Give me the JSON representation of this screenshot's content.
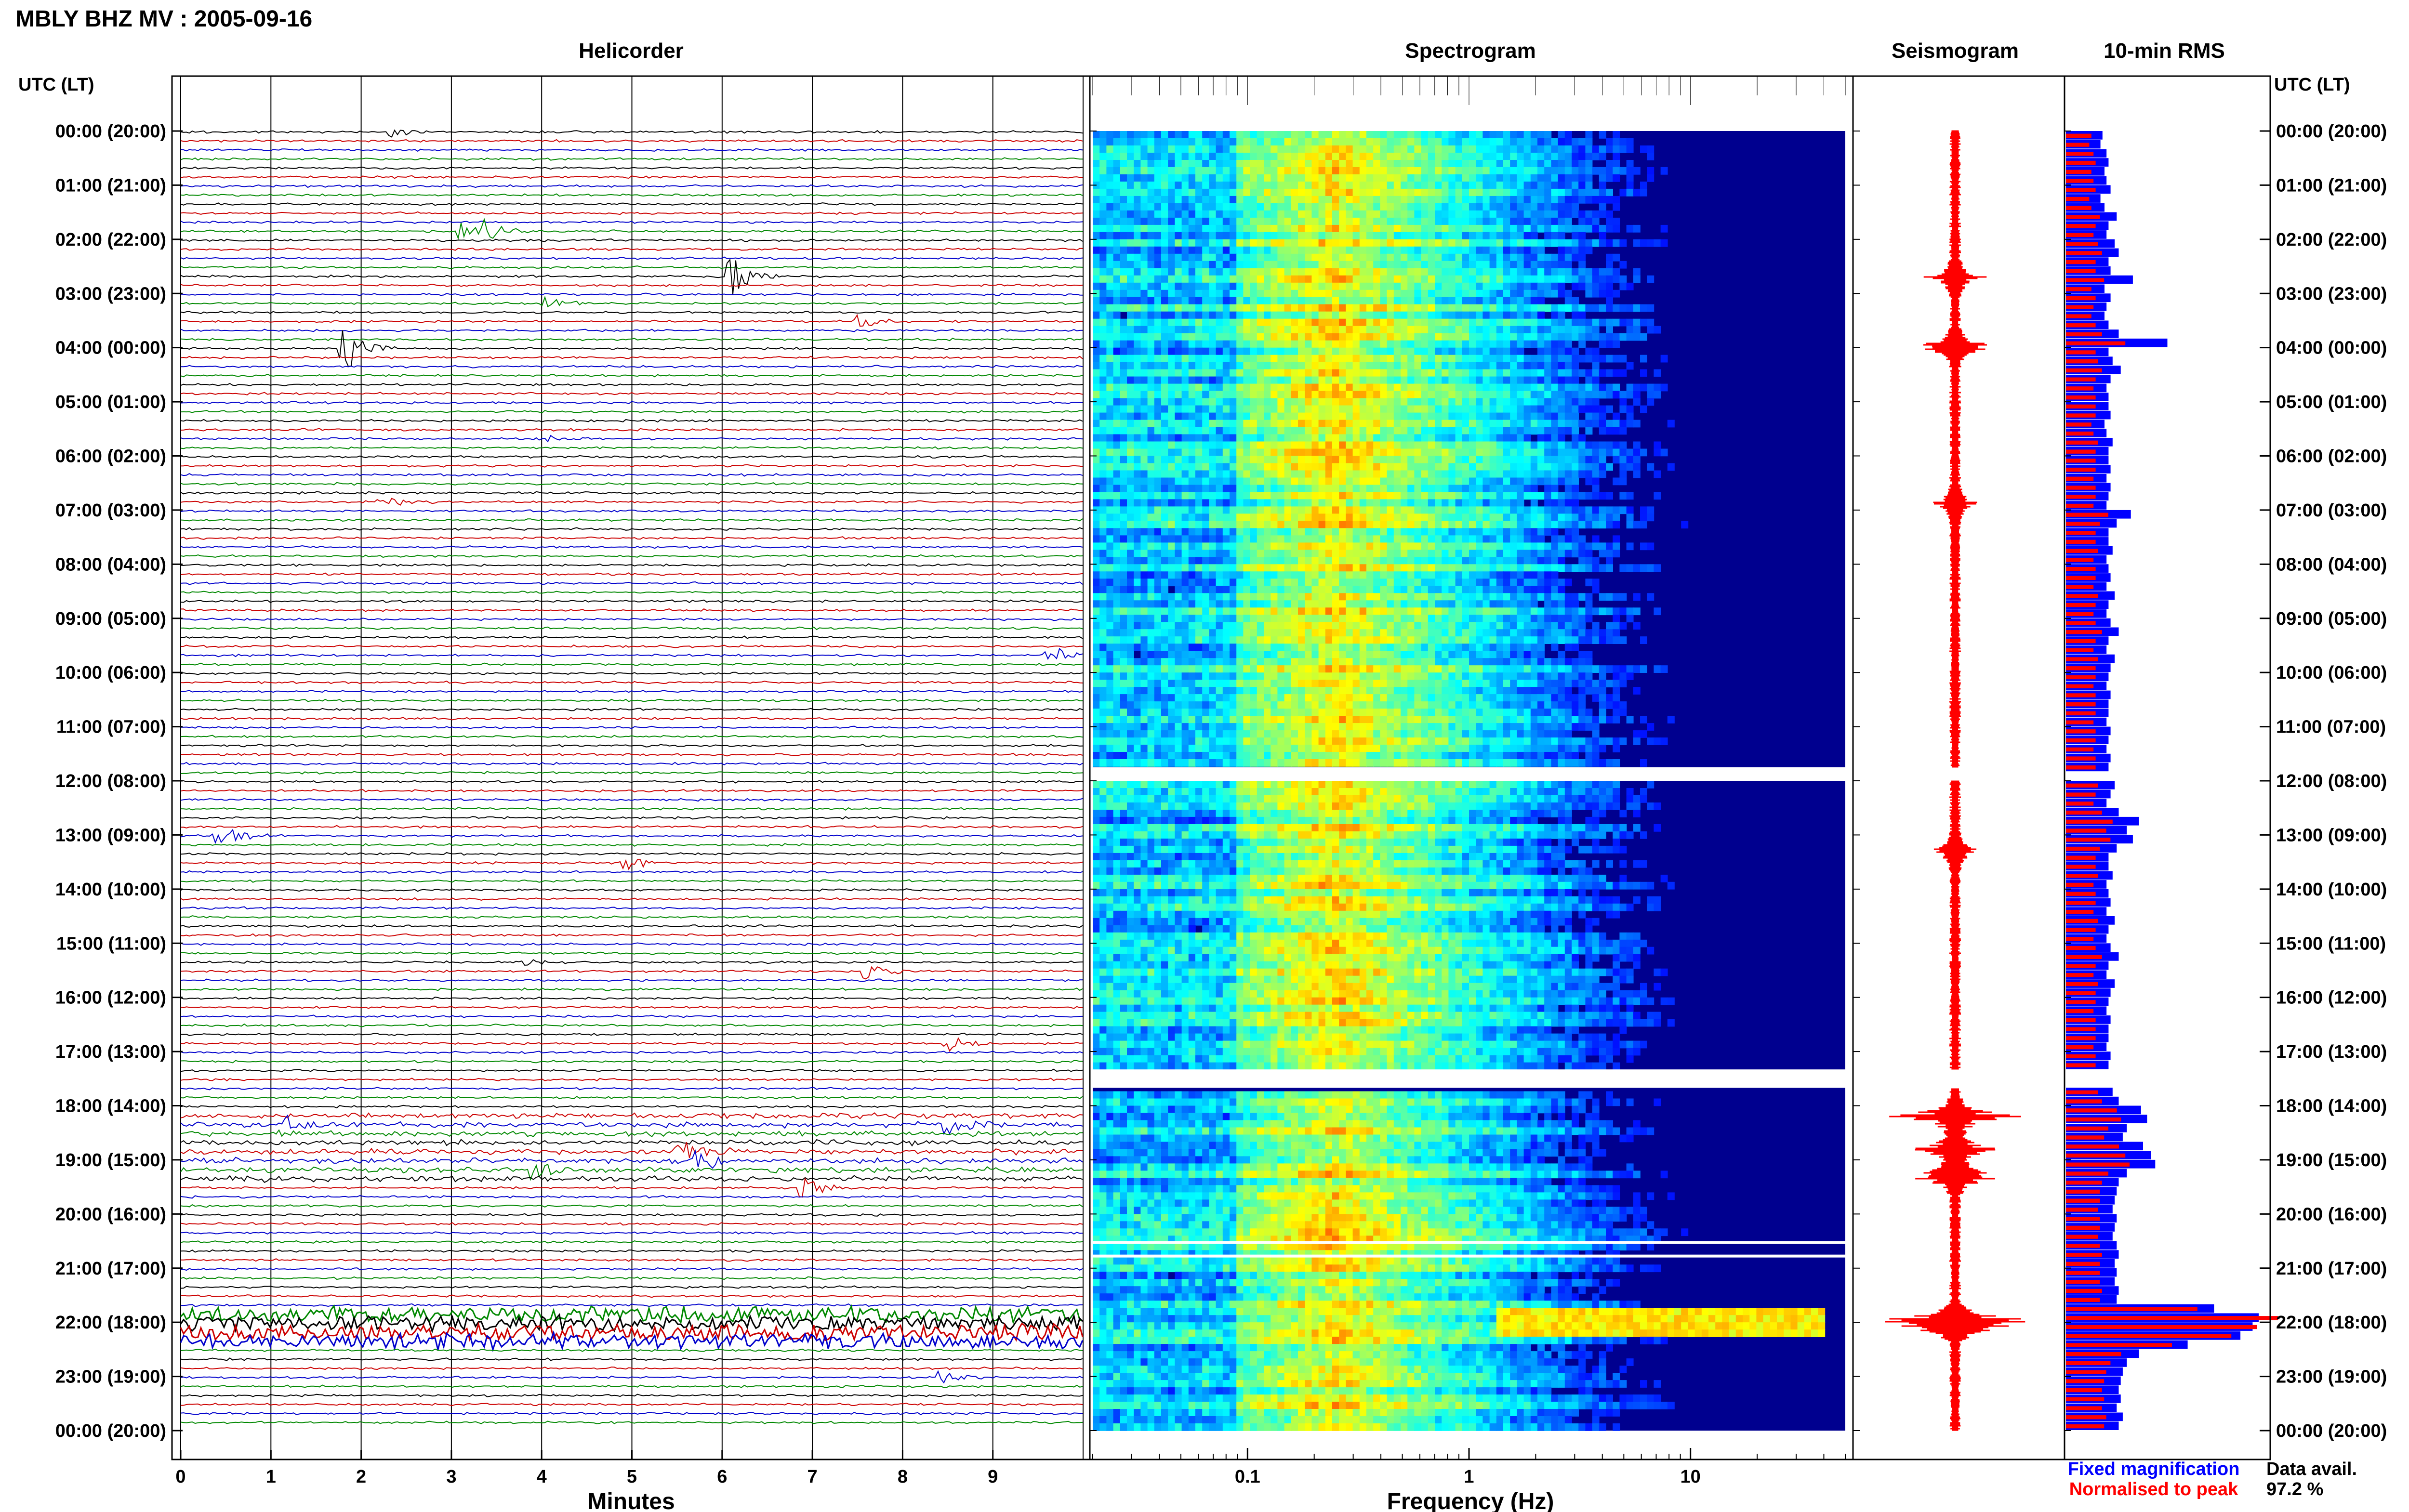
{
  "page_title": "MBLY BHZ MV : 2005-09-16",
  "panels": {
    "helicorder": "Helicorder",
    "spectrogram": "Spectrogram",
    "seismogram": "Seismogram",
    "rms": "10-min RMS"
  },
  "axis_header_left": "UTC (LT)",
  "axis_header_right": "UTC (LT)",
  "time_labels": [
    "00:00 (20:00)",
    "01:00 (21:00)",
    "02:00 (22:00)",
    "03:00 (23:00)",
    "04:00 (00:00)",
    "05:00 (01:00)",
    "06:00 (02:00)",
    "07:00 (03:00)",
    "08:00 (04:00)",
    "09:00 (05:00)",
    "10:00 (06:00)",
    "11:00 (07:00)",
    "12:00 (08:00)",
    "13:00 (09:00)",
    "14:00 (10:00)",
    "15:00 (11:00)",
    "16:00 (12:00)",
    "17:00 (13:00)",
    "18:00 (14:00)",
    "19:00 (15:00)",
    "20:00 (16:00)",
    "21:00 (17:00)",
    "22:00 (18:00)",
    "23:00 (19:00)",
    "00:00 (20:00)"
  ],
  "helicorder_xlabel": "Minutes",
  "helicorder_ticks": [
    "0",
    "1",
    "2",
    "3",
    "4",
    "5",
    "6",
    "7",
    "8",
    "9"
  ],
  "spectrogram_xlabel": "Frequency (Hz)",
  "spectrogram_ticks": [
    "0.1",
    "1",
    "10"
  ],
  "legend": {
    "fixed": "Fixed magnification",
    "normalised": "Normalised to peak",
    "fixed_color": "#0000ff",
    "normalised_color": "#ff0000"
  },
  "data_avail_label": "Data avail.",
  "data_avail_value": "97.2 %",
  "colors": {
    "trace_cycle": [
      "#000000",
      "#cc0000",
      "#0000cc",
      "#008800"
    ],
    "seismogram": "#ff0000",
    "rms_fixed": "#0000ff",
    "rms_normalised": "#ff0000",
    "spectrogram_colormap": "jet"
  },
  "chart_data": [
    {
      "type": "line",
      "name": "helicorder",
      "x_unit": "minutes",
      "xlim": [
        0,
        10
      ],
      "rows_per_hour": 6,
      "row_minutes": 10,
      "missing_rows": [
        72,
        106
      ],
      "events": [
        {
          "row": 0,
          "minute": 2.3,
          "amp": 1.2
        },
        {
          "row": 11,
          "minute": 3.1,
          "amp": 1.8
        },
        {
          "row": 11,
          "minute": 3.4,
          "amp": 2.2
        },
        {
          "row": 16,
          "minute": 6.1,
          "amp": 4.5
        },
        {
          "row": 19,
          "minute": 4.0,
          "amp": 1.5
        },
        {
          "row": 21,
          "minute": 7.5,
          "amp": 1.5
        },
        {
          "row": 24,
          "minute": 1.8,
          "amp": 6.5
        },
        {
          "row": 34,
          "minute": 4.0,
          "amp": 1.2
        },
        {
          "row": 41,
          "minute": 2.2,
          "amp": 2.0
        },
        {
          "row": 58,
          "minute": 9.6,
          "amp": 2.5
        },
        {
          "row": 78,
          "minute": 0.4,
          "amp": 2.8
        },
        {
          "row": 81,
          "minute": 4.9,
          "amp": 2.2
        },
        {
          "row": 92,
          "minute": 3.8,
          "amp": 1.0
        },
        {
          "row": 93,
          "minute": 7.6,
          "amp": 2.0
        },
        {
          "row": 101,
          "minute": 8.5,
          "amp": 2.0
        },
        {
          "row": 110,
          "minute": 1.2,
          "amp": 2.0
        },
        {
          "row": 110,
          "minute": 8.5,
          "amp": 2.5
        },
        {
          "row": 113,
          "minute": 5.5,
          "amp": 3.0
        },
        {
          "row": 114,
          "minute": 5.7,
          "amp": 3.5
        },
        {
          "row": 115,
          "minute": 3.9,
          "amp": 2.5
        },
        {
          "row": 117,
          "minute": 6.9,
          "amp": 2.8
        },
        {
          "row": 138,
          "minute": 8.4,
          "amp": 1.5
        }
      ],
      "noisy_rows": [
        109,
        110,
        111,
        112,
        113,
        114,
        115,
        116
      ],
      "burst_rows": [
        131,
        132,
        133,
        134
      ]
    },
    {
      "type": "heatmap",
      "name": "spectrogram",
      "x_unit": "Hz",
      "x_scale": "log",
      "xlim": [
        0.02,
        50
      ],
      "peak_band_hz": [
        0.18,
        0.35
      ],
      "gaps_hours": [
        [
          11.75,
          12.0
        ],
        [
          17.33,
          17.67
        ],
        [
          20.5,
          20.55
        ],
        [
          20.75,
          20.8
        ]
      ],
      "tremor_hours": [
        21.75,
        22.3
      ],
      "tremor_band_hz": [
        1.3,
        40
      ]
    },
    {
      "type": "area",
      "name": "seismogram",
      "x_unit": "relative amplitude",
      "events_hours": [
        [
          2.7,
          1.8
        ],
        [
          4.0,
          3.0
        ],
        [
          6.9,
          1.6
        ],
        [
          13.3,
          1.5
        ],
        [
          18.2,
          4.5
        ],
        [
          18.8,
          3.0
        ],
        [
          19.3,
          3.5
        ],
        [
          22.0,
          8.0
        ]
      ],
      "gaps_hours": [
        [
          11.75,
          12.0
        ],
        [
          17.33,
          17.67
        ]
      ]
    },
    {
      "type": "bar",
      "name": "10-min RMS",
      "x_unit": "relative RMS",
      "series": [
        {
          "name": "Fixed magnification",
          "values": [
            0.18,
            0.17,
            0.2,
            0.21,
            0.19,
            0.2,
            0.22,
            0.17,
            0.19,
            0.25,
            0.21,
            0.2,
            0.24,
            0.26,
            0.21,
            0.22,
            0.33,
            0.19,
            0.22,
            0.2,
            0.19,
            0.21,
            0.26,
            0.5,
            0.21,
            0.23,
            0.27,
            0.22,
            0.2,
            0.21,
            0.21,
            0.22,
            0.19,
            0.2,
            0.23,
            0.21,
            0.21,
            0.22,
            0.2,
            0.22,
            0.21,
            0.2,
            0.32,
            0.25,
            0.21,
            0.21,
            0.23,
            0.2,
            0.21,
            0.22,
            0.2,
            0.24,
            0.21,
            0.2,
            0.22,
            0.26,
            0.21,
            0.2,
            0.24,
            0.22,
            0.21,
            0.2,
            0.22,
            0.21,
            0.21,
            0.2,
            0.22,
            0.21,
            0.2,
            0.22,
            0.21,
            0.21,
            0.24,
            0.22,
            0.2,
            0.26,
            0.36,
            0.3,
            0.33,
            0.25,
            0.21,
            0.21,
            0.23,
            0.2,
            0.21,
            0.22,
            0.2,
            0.24,
            0.21,
            0.2,
            0.22,
            0.26,
            0.21,
            0.2,
            0.24,
            0.22,
            0.21,
            0.2,
            0.22,
            0.21,
            0.21,
            0.2,
            0.22,
            0.21,
            0.2,
            0.22,
            0.23,
            0.26,
            0.37,
            0.4,
            0.3,
            0.28,
            0.38,
            0.42,
            0.44,
            0.3,
            0.26,
            0.25,
            0.24,
            0.23,
            0.25,
            0.24,
            0.23,
            0.25,
            0.26,
            0.24,
            0.25,
            0.24,
            0.26,
            0.25,
            0.73,
            0.95,
            0.92,
            0.86,
            0.6,
            0.36,
            0.3,
            0.28,
            0.27,
            0.26,
            0.27,
            0.25,
            0.28,
            0.26
          ]
        },
        {
          "name": "Normalised to peak",
          "values": [
            0.12,
            0.11,
            0.13,
            0.14,
            0.12,
            0.13,
            0.14,
            0.11,
            0.12,
            0.16,
            0.14,
            0.13,
            0.15,
            0.17,
            0.14,
            0.14,
            0.18,
            0.12,
            0.14,
            0.13,
            0.12,
            0.14,
            0.17,
            0.28,
            0.14,
            0.15,
            0.17,
            0.14,
            0.13,
            0.14,
            0.14,
            0.14,
            0.12,
            0.13,
            0.15,
            0.14,
            0.14,
            0.14,
            0.13,
            0.14,
            0.14,
            0.13,
            0.2,
            0.16,
            0.14,
            0.14,
            0.15,
            0.13,
            0.14,
            0.14,
            0.13,
            0.15,
            0.14,
            0.13,
            0.14,
            0.17,
            0.14,
            0.13,
            0.15,
            0.14,
            0.14,
            0.13,
            0.14,
            0.14,
            0.14,
            0.13,
            0.14,
            0.14,
            0.13,
            0.14,
            0.14,
            0.14,
            0.15,
            0.14,
            0.13,
            0.17,
            0.22,
            0.19,
            0.21,
            0.16,
            0.14,
            0.14,
            0.15,
            0.13,
            0.14,
            0.14,
            0.13,
            0.15,
            0.14,
            0.13,
            0.14,
            0.17,
            0.14,
            0.13,
            0.15,
            0.14,
            0.14,
            0.13,
            0.14,
            0.14,
            0.14,
            0.13,
            0.14,
            0.14,
            0.13,
            0.14,
            0.15,
            0.17,
            0.24,
            0.26,
            0.2,
            0.18,
            0.25,
            0.28,
            0.3,
            0.2,
            0.17,
            0.16,
            0.16,
            0.15,
            0.16,
            0.16,
            0.15,
            0.16,
            0.17,
            0.16,
            0.16,
            0.16,
            0.17,
            0.16,
            0.62,
            1.0,
            0.9,
            0.78,
            0.5,
            0.26,
            0.21,
            0.19,
            0.18,
            0.17,
            0.18,
            0.17,
            0.19,
            0.18
          ]
        }
      ]
    }
  ]
}
